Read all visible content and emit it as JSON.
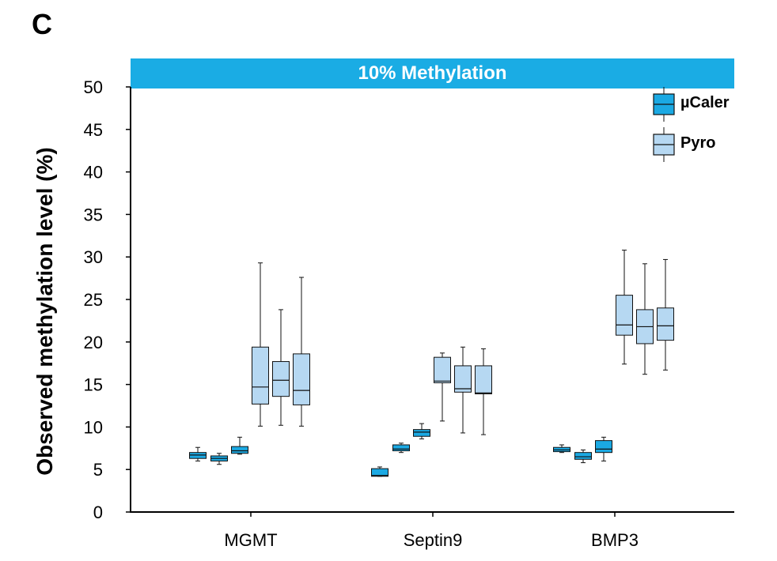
{
  "panel_label": "C",
  "colors": {
    "mucaler": "#1ba9e3",
    "pyro": "#b6d8f2",
    "band": "#1aace4",
    "stroke": "#111111"
  },
  "chart_data": {
    "type": "boxplot",
    "title": "10% Methylation",
    "xlabel": "",
    "ylabel": "Observed methylation level (%)",
    "ylim": [
      0,
      50
    ],
    "yticks": [
      0,
      5,
      10,
      15,
      20,
      25,
      30,
      35,
      40,
      45,
      50
    ],
    "grid": false,
    "legend_position": "top-right",
    "legend": [
      {
        "name": "µCaler",
        "series": "mucaler"
      },
      {
        "name": "Pyro",
        "series": "pyro"
      }
    ],
    "categories": [
      "MGMT",
      "Septin9",
      "BMP3"
    ],
    "groups": [
      {
        "category": "MGMT",
        "boxes": [
          {
            "series": "mucaler",
            "min": 6.0,
            "q1": 6.3,
            "median": 6.7,
            "q3": 7.0,
            "max": 7.6
          },
          {
            "series": "mucaler",
            "min": 5.6,
            "q1": 6.0,
            "median": 6.3,
            "q3": 6.6,
            "max": 6.9
          },
          {
            "series": "mucaler",
            "min": 6.8,
            "q1": 6.9,
            "median": 7.2,
            "q3": 7.7,
            "max": 8.8
          },
          {
            "series": "pyro",
            "min": 10.1,
            "q1": 12.7,
            "median": 14.7,
            "q3": 19.4,
            "max": 29.3
          },
          {
            "series": "pyro",
            "min": 10.2,
            "q1": 13.6,
            "median": 15.5,
            "q3": 17.7,
            "max": 23.8
          },
          {
            "series": "pyro",
            "min": 10.1,
            "q1": 12.6,
            "median": 14.3,
            "q3": 18.6,
            "max": 27.6
          }
        ]
      },
      {
        "category": "Septin9",
        "boxes": [
          {
            "series": "mucaler",
            "min": 4.2,
            "q1": 4.2,
            "median": 4.3,
            "q3": 5.1,
            "max": 5.3
          },
          {
            "series": "mucaler",
            "min": 7.0,
            "q1": 7.2,
            "median": 7.4,
            "q3": 7.9,
            "max": 8.1
          },
          {
            "series": "mucaler",
            "min": 8.6,
            "q1": 8.9,
            "median": 9.4,
            "q3": 9.7,
            "max": 10.4
          },
          {
            "series": "pyro",
            "min": 10.7,
            "q1": 15.2,
            "median": 15.4,
            "q3": 18.2,
            "max": 18.7
          },
          {
            "series": "pyro",
            "min": 9.3,
            "q1": 14.1,
            "median": 14.5,
            "q3": 17.2,
            "max": 19.4
          },
          {
            "series": "pyro",
            "min": 9.1,
            "q1": 13.9,
            "median": 14.0,
            "q3": 17.2,
            "max": 19.2
          }
        ]
      },
      {
        "category": "BMP3",
        "boxes": [
          {
            "series": "mucaler",
            "min": 7.0,
            "q1": 7.1,
            "median": 7.3,
            "q3": 7.6,
            "max": 7.9
          },
          {
            "series": "mucaler",
            "min": 5.8,
            "q1": 6.2,
            "median": 6.5,
            "q3": 7.0,
            "max": 7.3
          },
          {
            "series": "mucaler",
            "min": 6.0,
            "q1": 7.0,
            "median": 7.4,
            "q3": 8.4,
            "max": 8.8
          },
          {
            "series": "pyro",
            "min": 17.4,
            "q1": 20.8,
            "median": 22.0,
            "q3": 25.5,
            "max": 30.8
          },
          {
            "series": "pyro",
            "min": 16.2,
            "q1": 19.8,
            "median": 21.8,
            "q3": 23.8,
            "max": 29.2
          },
          {
            "series": "pyro",
            "min": 16.7,
            "q1": 20.2,
            "median": 21.9,
            "q3": 24.0,
            "max": 29.7
          }
        ]
      }
    ]
  }
}
